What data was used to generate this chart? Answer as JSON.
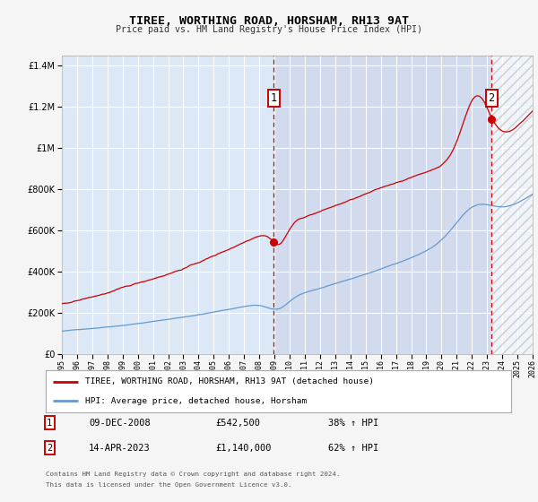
{
  "title": "TIREE, WORTHING ROAD, HORSHAM, RH13 9AT",
  "subtitle": "Price paid vs. HM Land Registry's House Price Index (HPI)",
  "legend_line1": "TIREE, WORTHING ROAD, HORSHAM, RH13 9AT (detached house)",
  "legend_line2": "HPI: Average price, detached house, Horsham",
  "note1": "Contains HM Land Registry data © Crown copyright and database right 2024.",
  "note2": "This data is licensed under the Open Government Licence v3.0.",
  "point1_date": "09-DEC-2008",
  "point1_price": "£542,500",
  "point1_hpi": "38% ↑ HPI",
  "point2_date": "14-APR-2023",
  "point2_price": "£1,140,000",
  "point2_hpi": "62% ↑ HPI",
  "point1_x": 2008.94,
  "point1_y": 542500,
  "point2_x": 2023.29,
  "point2_y": 1140000,
  "vline1_x": 2008.94,
  "vline2_x": 2023.29,
  "xlim": [
    1995,
    2026
  ],
  "ylim": [
    0,
    1450000
  ],
  "red_color": "#cc0000",
  "blue_color": "#6699cc",
  "bg_color": "#dce8f5",
  "grid_color": "#ffffff",
  "hatch_color": "#cccccc"
}
